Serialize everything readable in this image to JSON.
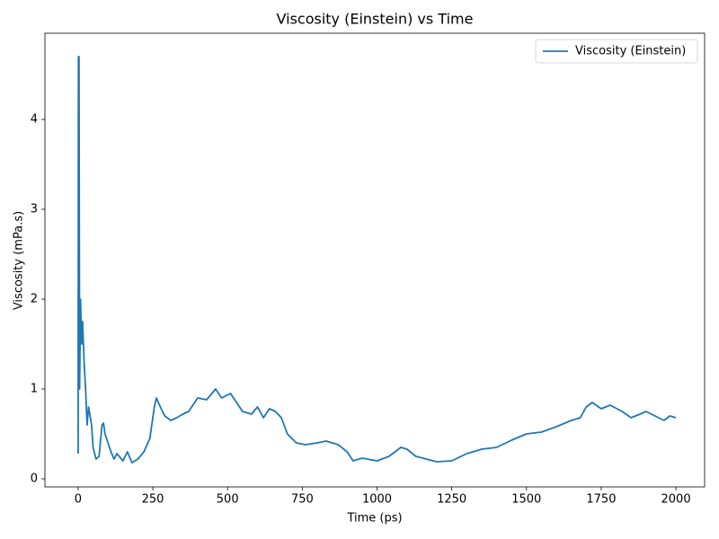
{
  "chart_data": {
    "type": "line",
    "title": "Viscosity (Einstein) vs Time",
    "xlabel": "Time (ps)",
    "ylabel": "Viscosity (mPa.s)",
    "x": [
      0,
      1,
      3,
      5,
      8,
      12,
      15,
      20,
      25,
      30,
      35,
      40,
      45,
      50,
      60,
      70,
      80,
      85,
      90,
      100,
      110,
      120,
      130,
      150,
      165,
      180,
      200,
      220,
      240,
      255,
      262,
      275,
      290,
      310,
      330,
      350,
      370,
      400,
      430,
      460,
      480,
      510,
      530,
      550,
      580,
      600,
      620,
      640,
      660,
      680,
      700,
      730,
      760,
      800,
      830,
      870,
      900,
      920,
      950,
      1000,
      1040,
      1080,
      1100,
      1130,
      1200,
      1250,
      1300,
      1350,
      1400,
      1450,
      1500,
      1550,
      1600,
      1650,
      1680,
      1700,
      1720,
      1750,
      1780,
      1820,
      1850,
      1880,
      1900,
      1930,
      1960,
      1980,
      2000
    ],
    "series": [
      {
        "name": "Viscosity (Einstein)",
        "color": "#1f77b4",
        "values": [
          0.28,
          4.7,
          4.7,
          1.0,
          2.0,
          1.5,
          1.75,
          1.3,
          1.0,
          0.6,
          0.8,
          0.7,
          0.6,
          0.35,
          0.22,
          0.25,
          0.6,
          0.62,
          0.5,
          0.4,
          0.3,
          0.22,
          0.28,
          0.2,
          0.3,
          0.18,
          0.22,
          0.3,
          0.45,
          0.8,
          0.9,
          0.8,
          0.7,
          0.65,
          0.68,
          0.72,
          0.75,
          0.9,
          0.88,
          1.0,
          0.9,
          0.95,
          0.85,
          0.75,
          0.72,
          0.8,
          0.68,
          0.78,
          0.75,
          0.68,
          0.5,
          0.4,
          0.38,
          0.4,
          0.42,
          0.38,
          0.3,
          0.2,
          0.23,
          0.2,
          0.25,
          0.35,
          0.33,
          0.25,
          0.19,
          0.2,
          0.28,
          0.33,
          0.35,
          0.43,
          0.5,
          0.52,
          0.58,
          0.65,
          0.68,
          0.8,
          0.85,
          0.78,
          0.82,
          0.75,
          0.68,
          0.72,
          0.75,
          0.7,
          0.65,
          0.7,
          0.68
        ]
      }
    ],
    "xlim": [
      -111,
      2096
    ],
    "ylim": [
      -0.09,
      4.96
    ],
    "xticks": [
      0,
      250,
      500,
      750,
      1000,
      1250,
      1500,
      1750,
      2000
    ],
    "yticks": [
      0,
      1,
      2,
      3,
      4
    ],
    "legend": "upper right"
  }
}
